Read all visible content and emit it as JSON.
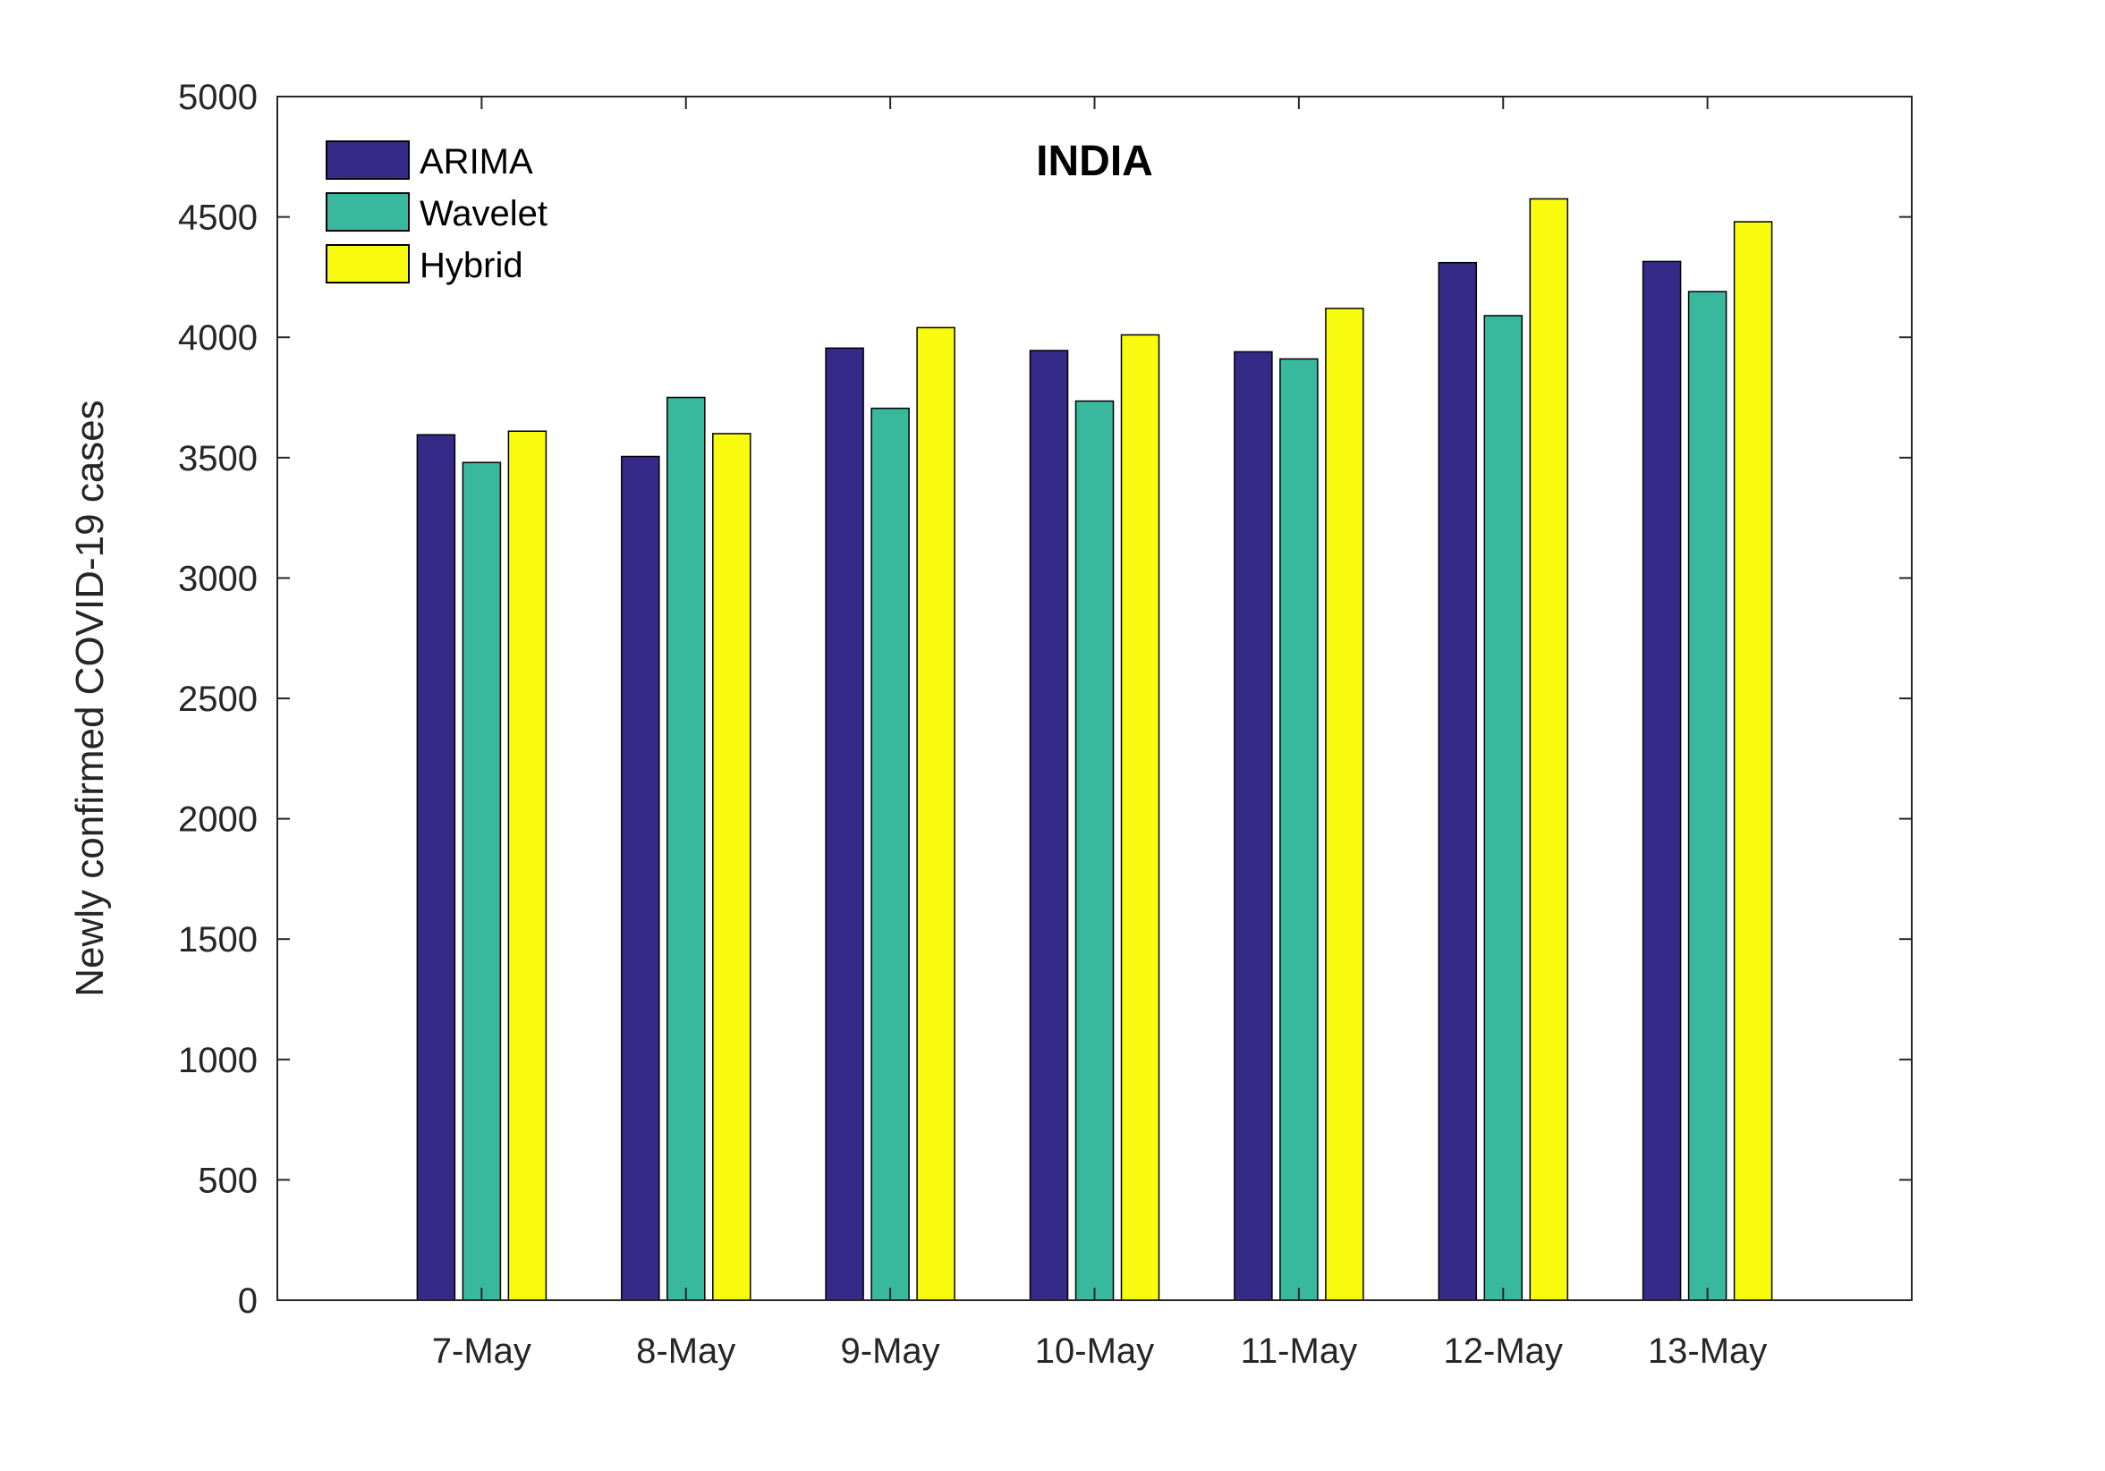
{
  "chart_data": {
    "type": "bar",
    "title": "INDIA",
    "xlabel": "",
    "ylabel": "Newly confirmed COVID-19 cases",
    "ylim": [
      0,
      5000
    ],
    "yticks": [
      0,
      500,
      1000,
      1500,
      2000,
      2500,
      3000,
      3500,
      4000,
      4500,
      5000
    ],
    "xlim": [
      0,
      8
    ],
    "categories": [
      "7-May",
      "8-May",
      "9-May",
      "10-May",
      "11-May",
      "12-May",
      "13-May"
    ],
    "series": [
      {
        "name": "ARIMA",
        "color": "#352a87",
        "values": [
          3595,
          3505,
          3955,
          3945,
          3940,
          4310,
          4315
        ]
      },
      {
        "name": "Wavelet",
        "color": "#38b99e",
        "values": [
          3480,
          3750,
          3705,
          3735,
          3910,
          4090,
          4190
        ]
      },
      {
        "name": "Hybrid",
        "color": "#f9fb0e",
        "values": [
          3610,
          3600,
          4040,
          4010,
          4120,
          4575,
          4480
        ]
      }
    ],
    "legend": {
      "position": "top-left",
      "entries": [
        "ARIMA",
        "Wavelet",
        "Hybrid"
      ]
    },
    "grid": false
  }
}
